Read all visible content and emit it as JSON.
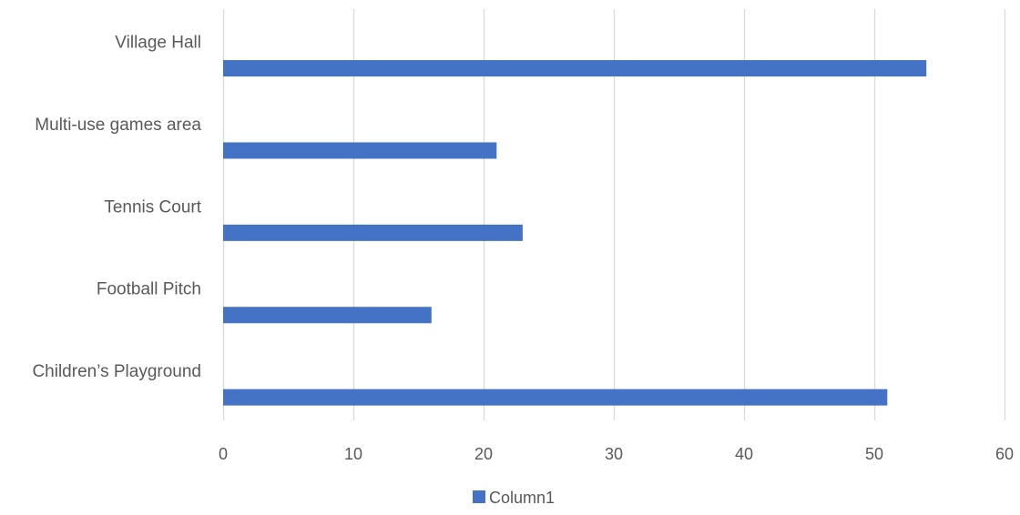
{
  "chart_data": {
    "type": "bar",
    "orientation": "horizontal",
    "categories": [
      "Village Hall",
      "Multi-use games area",
      "Tennis Court",
      "Football Pitch",
      "Children’s Playground"
    ],
    "series": [
      {
        "name": "Column1",
        "values": [
          54,
          21,
          23,
          16,
          51
        ],
        "color": "#4472C4"
      }
    ],
    "xlim": [
      0,
      60
    ],
    "xticks": [
      "0",
      "10",
      "20",
      "30",
      "40",
      "50",
      "60"
    ],
    "grid": true,
    "legend_position": "bottom"
  }
}
